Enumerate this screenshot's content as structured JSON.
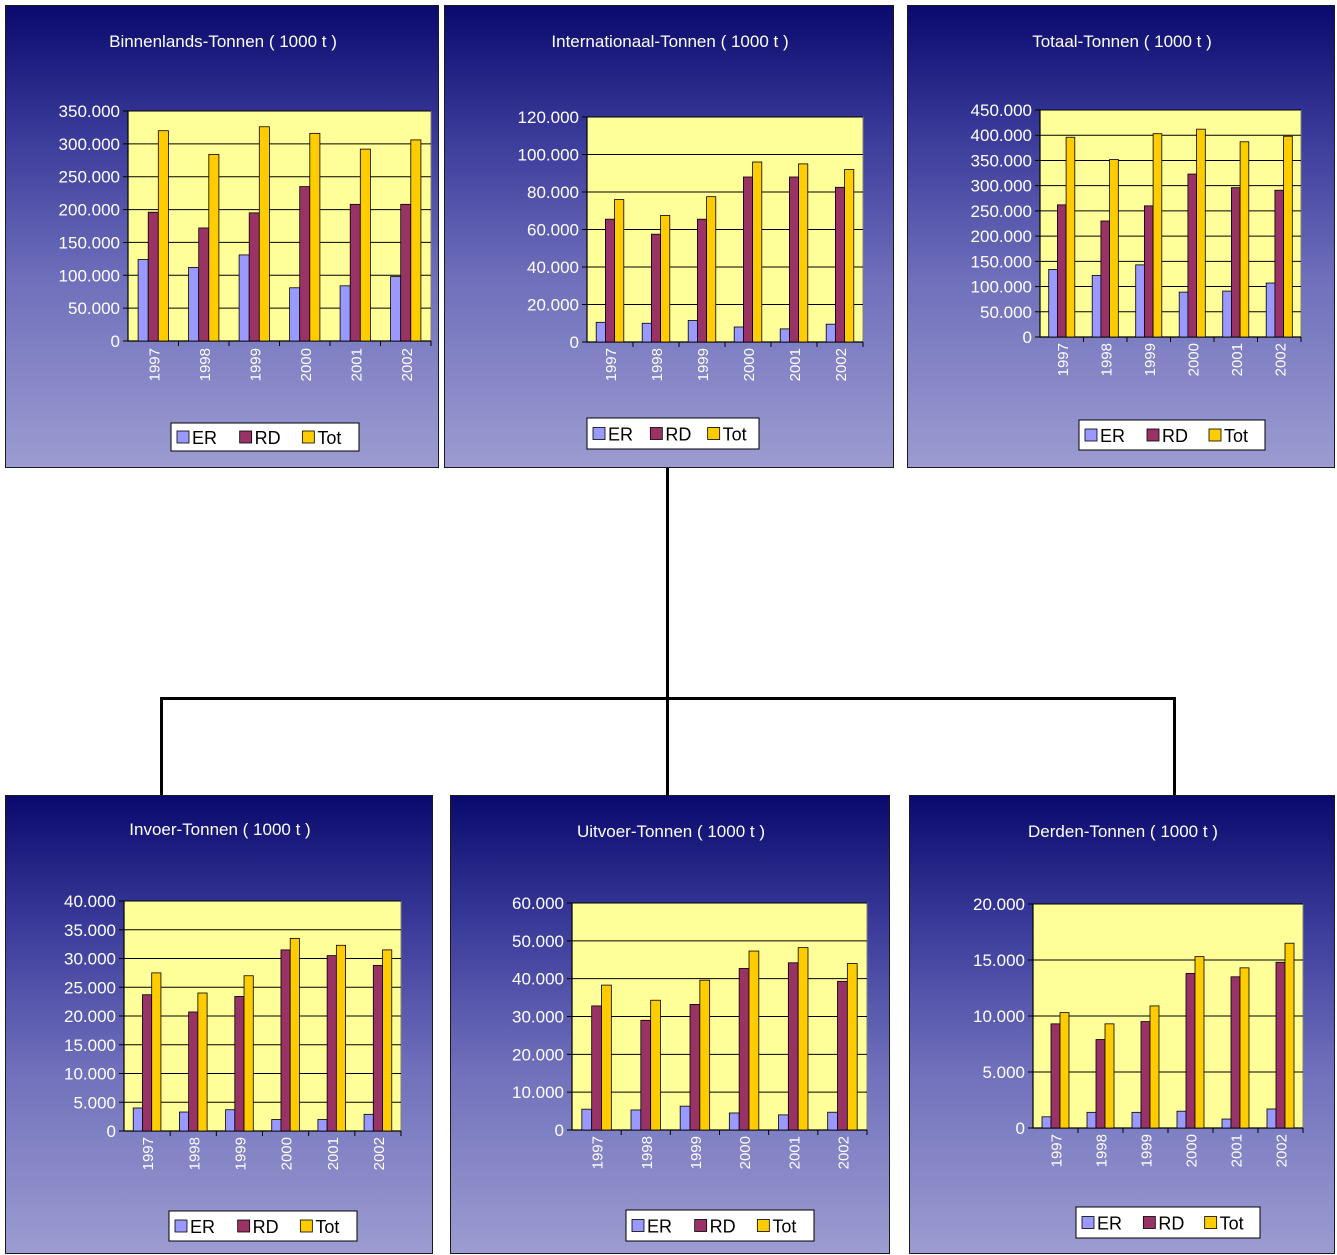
{
  "colors": {
    "ER": "#9999ff",
    "RD": "#993366",
    "Tot": "#ffcc00",
    "plot_bg": "#ffff99"
  },
  "chart_data": [
    {
      "type": "bar",
      "title": "Binnenlands-Tonnen ( 1000 t )",
      "categories": [
        "1997",
        "1998",
        "1999",
        "2000",
        "2001",
        "2002"
      ],
      "series": [
        {
          "name": "ER",
          "values": [
            124000,
            112000,
            131000,
            81000,
            84000,
            98000
          ]
        },
        {
          "name": "RD",
          "values": [
            196000,
            172000,
            195000,
            235000,
            208000,
            208000
          ]
        },
        {
          "name": "Tot",
          "values": [
            320000,
            284000,
            326000,
            316000,
            292000,
            306000
          ]
        }
      ],
      "ylim": [
        0,
        350000
      ],
      "yticks": [
        0,
        50000,
        100000,
        150000,
        200000,
        250000,
        300000,
        350000
      ],
      "ytick_labels": [
        "0",
        "50.000",
        "100.000",
        "150.000",
        "200.000",
        "250.000",
        "300.000",
        "350.000"
      ],
      "legend": "bottom"
    },
    {
      "type": "bar",
      "title": "Internationaal-Tonnen ( 1000 t )",
      "categories": [
        "1997",
        "1998",
        "1999",
        "2000",
        "2001",
        "2002"
      ],
      "series": [
        {
          "name": "ER",
          "values": [
            10500,
            10000,
            11500,
            8000,
            7000,
            9500
          ]
        },
        {
          "name": "RD",
          "values": [
            65500,
            57500,
            65500,
            88000,
            88000,
            82500
          ]
        },
        {
          "name": "Tot",
          "values": [
            76000,
            67500,
            77500,
            96000,
            95000,
            92000
          ]
        }
      ],
      "ylim": [
        0,
        120000
      ],
      "yticks": [
        0,
        20000,
        40000,
        60000,
        80000,
        100000,
        120000
      ],
      "ytick_labels": [
        "0",
        "20.000",
        "40.000",
        "60.000",
        "80.000",
        "100.000",
        "120.000"
      ],
      "legend": "bottom"
    },
    {
      "type": "bar",
      "title": "Totaal-Tonnen ( 1000 t )",
      "categories": [
        "1997",
        "1998",
        "1999",
        "2000",
        "2001",
        "2002"
      ],
      "series": [
        {
          "name": "ER",
          "values": [
            134000,
            122000,
            143000,
            89000,
            91000,
            107000
          ]
        },
        {
          "name": "RD",
          "values": [
            262000,
            230000,
            260000,
            323000,
            296000,
            291000
          ]
        },
        {
          "name": "Tot",
          "values": [
            396000,
            352000,
            403000,
            412000,
            387000,
            398000
          ]
        }
      ],
      "ylim": [
        0,
        450000
      ],
      "yticks": [
        0,
        50000,
        100000,
        150000,
        200000,
        250000,
        300000,
        350000,
        400000,
        450000
      ],
      "ytick_labels": [
        "0",
        "50.000",
        "100.000",
        "150.000",
        "200.000",
        "250.000",
        "300.000",
        "350.000",
        "400.000",
        "450.000"
      ],
      "legend": "bottom"
    },
    {
      "type": "bar",
      "title": "Invoer-Tonnen ( 1000 t )",
      "categories": [
        "1997",
        "1998",
        "1999",
        "2000",
        "2001",
        "2002"
      ],
      "series": [
        {
          "name": "ER",
          "values": [
            4000,
            3300,
            3700,
            2000,
            2000,
            2900
          ]
        },
        {
          "name": "RD",
          "values": [
            23700,
            20700,
            23400,
            31500,
            30500,
            28800
          ]
        },
        {
          "name": "Tot",
          "values": [
            27500,
            24000,
            27000,
            33500,
            32300,
            31500
          ]
        }
      ],
      "ylim": [
        0,
        40000
      ],
      "yticks": [
        0,
        5000,
        10000,
        15000,
        20000,
        25000,
        30000,
        35000,
        40000
      ],
      "ytick_labels": [
        "0",
        "5.000",
        "10.000",
        "15.000",
        "20.000",
        "25.000",
        "30.000",
        "35.000",
        "40.000"
      ],
      "legend": "bottom"
    },
    {
      "type": "bar",
      "title": "Uitvoer-Tonnen ( 1000 t )",
      "categories": [
        "1997",
        "1998",
        "1999",
        "2000",
        "2001",
        "2002"
      ],
      "series": [
        {
          "name": "ER",
          "values": [
            5500,
            5300,
            6300,
            4500,
            4000,
            4700
          ]
        },
        {
          "name": "RD",
          "values": [
            32800,
            29000,
            33200,
            42700,
            44200,
            39300
          ]
        },
        {
          "name": "Tot",
          "values": [
            38300,
            34300,
            39600,
            47300,
            48200,
            44000
          ]
        }
      ],
      "ylim": [
        0,
        60000
      ],
      "yticks": [
        0,
        10000,
        20000,
        30000,
        40000,
        50000,
        60000
      ],
      "ytick_labels": [
        "0",
        "10.000",
        "20.000",
        "30.000",
        "40.000",
        "50.000",
        "60.000"
      ],
      "legend": "bottom"
    },
    {
      "type": "bar",
      "title": "Derden-Tonnen ( 1000 t )",
      "categories": [
        "1997",
        "1998",
        "1999",
        "2000",
        "2001",
        "2002"
      ],
      "series": [
        {
          "name": "ER",
          "values": [
            1000,
            1400,
            1400,
            1500,
            800,
            1700
          ]
        },
        {
          "name": "RD",
          "values": [
            9300,
            7900,
            9500,
            13800,
            13500,
            14800
          ]
        },
        {
          "name": "Tot",
          "values": [
            10300,
            9300,
            10900,
            15300,
            14300,
            16500
          ]
        }
      ],
      "ylim": [
        0,
        20000
      ],
      "yticks": [
        0,
        5000,
        10000,
        15000,
        20000
      ],
      "ytick_labels": [
        "0",
        "5.000",
        "10.000",
        "15.000",
        "20.000"
      ],
      "legend": "bottom"
    }
  ]
}
